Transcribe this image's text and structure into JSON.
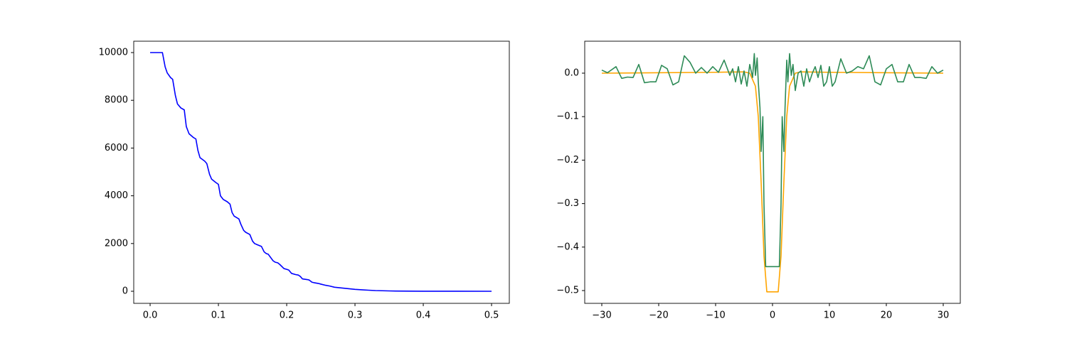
{
  "chart_data": [
    {
      "type": "line",
      "xlim": [
        -0.024,
        0.526
      ],
      "ylim": [
        -506,
        10476
      ],
      "xticks": [
        {
          "value": 0,
          "label": "0.0"
        },
        {
          "value": 0.1,
          "label": "0.1"
        },
        {
          "value": 0.2,
          "label": "0.2"
        },
        {
          "value": 0.3,
          "label": "0.3"
        },
        {
          "value": 0.4,
          "label": "0.4"
        },
        {
          "value": 0.5,
          "label": "0.5"
        }
      ],
      "yticks": [
        0,
        2000,
        4000,
        6000,
        8000,
        10000
      ],
      "series": [
        {
          "color": "#0000ff",
          "x": [
            0,
            0.01,
            0.018,
            0.022,
            0.025,
            0.03,
            0.033,
            0.037,
            0.04,
            0.045,
            0.05,
            0.053,
            0.057,
            0.063,
            0.067,
            0.07,
            0.073,
            0.08,
            0.083,
            0.087,
            0.09,
            0.096,
            0.1,
            0.103,
            0.107,
            0.113,
            0.117,
            0.12,
            0.123,
            0.13,
            0.133,
            0.137,
            0.14,
            0.146,
            0.15,
            0.153,
            0.157,
            0.163,
            0.167,
            0.17,
            0.173,
            0.18,
            0.183,
            0.187,
            0.19,
            0.196,
            0.2,
            0.203,
            0.207,
            0.213,
            0.217,
            0.22,
            0.223,
            0.23,
            0.233,
            0.237,
            0.24,
            0.246,
            0.25,
            0.257,
            0.263,
            0.27,
            0.28,
            0.29,
            0.3,
            0.31,
            0.32,
            0.33,
            0.34,
            0.35,
            0.36,
            0.38,
            0.4,
            0.42,
            0.45,
            0.5
          ],
          "values": [
            10000,
            10000,
            10000,
            9400,
            9150,
            8950,
            8880,
            8200,
            7850,
            7680,
            7600,
            6900,
            6600,
            6450,
            6380,
            5900,
            5600,
            5450,
            5350,
            4900,
            4700,
            4560,
            4480,
            4000,
            3850,
            3750,
            3650,
            3300,
            3150,
            3030,
            2800,
            2550,
            2470,
            2380,
            2100,
            2000,
            1950,
            1880,
            1650,
            1580,
            1550,
            1280,
            1220,
            1190,
            1120,
            950,
            920,
            890,
            750,
            700,
            680,
            620,
            520,
            490,
            470,
            380,
            360,
            330,
            300,
            250,
            220,
            170,
            140,
            110,
            80,
            60,
            45,
            30,
            22,
            15,
            10,
            5,
            3,
            2,
            1,
            0
          ]
        }
      ]
    },
    {
      "type": "line",
      "xlim": [
        -33,
        33
      ],
      "ylim": [
        -0.5294,
        0.0735
      ],
      "xticks": [
        {
          "value": -30,
          "label": "−30"
        },
        {
          "value": -20,
          "label": "−20"
        },
        {
          "value": -10,
          "label": "−10"
        },
        0,
        10,
        20,
        30
      ],
      "yticks": [
        {
          "value": 0,
          "label": "0.0"
        },
        {
          "value": -0.1,
          "label": "−0.1"
        },
        {
          "value": -0.2,
          "label": "−0.2"
        },
        {
          "value": -0.3,
          "label": "−0.3"
        },
        {
          "value": -0.4,
          "label": "−0.4"
        },
        {
          "value": -0.5,
          "label": "−0.5"
        }
      ],
      "series": [
        {
          "color": "#ffa500",
          "x": [
            -30,
            -10,
            -5,
            -4,
            -3,
            -2.5,
            -2,
            -1.5,
            -1,
            1,
            1.5,
            2,
            2.5,
            3,
            4,
            5,
            10,
            30
          ],
          "values": [
            0,
            0.002,
            0.003,
            0,
            -0.03,
            -0.1,
            -0.25,
            -0.42,
            -0.503,
            -0.503,
            -0.42,
            -0.25,
            -0.1,
            -0.03,
            0,
            0.003,
            0.002,
            0
          ]
        },
        {
          "color": "#2e8b57",
          "x": [
            -30,
            -29,
            -27.5,
            -26.5,
            -25.5,
            -24.5,
            -23.5,
            -22.5,
            -21.5,
            -20.5,
            -19.5,
            -18.5,
            -17.5,
            -16.5,
            -15.5,
            -14.5,
            -13.5,
            -12.5,
            -11.5,
            -10.5,
            -9.5,
            -8.5,
            -7.5,
            -7,
            -6.5,
            -6,
            -5.5,
            -5,
            -4.5,
            -4,
            -3.5,
            -3.2,
            -3,
            -2.7,
            -2.5,
            -2.2,
            -2,
            -1.7,
            -1.5,
            -1.2,
            1.2,
            1.5,
            1.7,
            2,
            2.2,
            2.5,
            2.7,
            3,
            3.3,
            3.6,
            4,
            4.5,
            5,
            5.5,
            6,
            6.5,
            7,
            7.5,
            8,
            8.5,
            9,
            9.5,
            10,
            10.5,
            11,
            12,
            13,
            14,
            15,
            16,
            17,
            18,
            19,
            20,
            21,
            22,
            23,
            24,
            25,
            26,
            27,
            28,
            29,
            30
          ],
          "values": [
            0.007,
            0.001,
            0.015,
            -0.012,
            -0.009,
            -0.01,
            0.02,
            -0.022,
            -0.02,
            -0.02,
            0.018,
            0.01,
            -0.027,
            -0.02,
            0.04,
            0.025,
            0,
            0.013,
            0,
            0.015,
            0.002,
            0.03,
            -0.005,
            0.01,
            -0.02,
            0.015,
            -0.025,
            0.005,
            -0.03,
            0.02,
            -0.01,
            0.045,
            -0.005,
            0.035,
            -0.02,
            -0.08,
            -0.18,
            -0.1,
            -0.3,
            -0.445,
            -0.445,
            -0.3,
            -0.1,
            -0.18,
            -0.08,
            0.03,
            -0.02,
            0.045,
            -0.005,
            0.02,
            -0.04,
            0,
            0.005,
            -0.03,
            0.01,
            -0.02,
            0,
            0.015,
            -0.01,
            0.018,
            -0.03,
            -0.02,
            0.015,
            -0.03,
            -0.02,
            0.033,
            0,
            0.005,
            0.015,
            0.01,
            0.04,
            -0.02,
            -0.027,
            0.01,
            0.02,
            -0.02,
            -0.02,
            0.02,
            -0.01,
            -0.01,
            -0.012,
            0.015,
            0,
            0.007
          ]
        }
      ]
    }
  ]
}
